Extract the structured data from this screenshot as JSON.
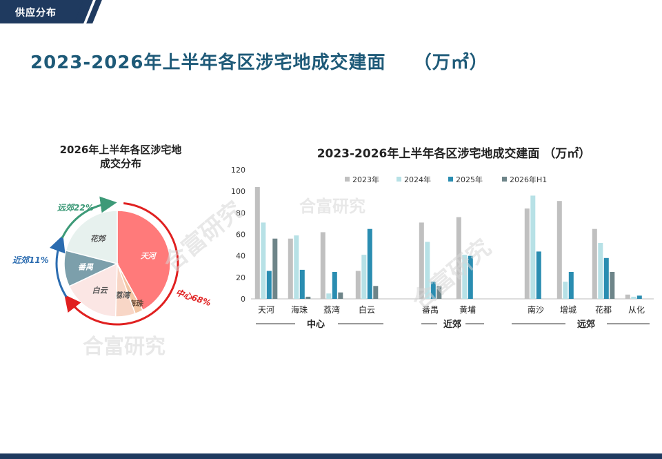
{
  "header": {
    "tag_label": "供应分布",
    "page_title": "2023-2026年上半年各区涉宅地成交建面    （万㎡）"
  },
  "watermarks": [
    "合富研究",
    "合富研究",
    "合富研究",
    "合富研究"
  ],
  "colors": {
    "brand_navy": "#1f3a5f",
    "title_blue": "#1e5a78",
    "s2023": "#c0c0c0",
    "s2024": "#b7e1e6",
    "s2025": "#2a8db1",
    "s2026": "#6e8589",
    "center_arc": "#e02020",
    "near_arc": "#2b6cb0",
    "far_arc": "#3d9a78"
  },
  "chart_data": [
    {
      "type": "pie",
      "title_lines": [
        "2026年上半年各区涉宅地",
        "成交分布"
      ],
      "slices": [
        {
          "name": "天河",
          "value": 42,
          "color": "#ff7a7a"
        },
        {
          "name": "海珠",
          "value": 2.5,
          "color": "#f3c6a4"
        },
        {
          "name": "荔湾",
          "value": 6,
          "color": "#f8d6c6"
        },
        {
          "name": "白云",
          "value": 17.5,
          "color": "#fbe6e4"
        },
        {
          "name": "番禺",
          "value": 11,
          "color": "#7c9fab"
        },
        {
          "name": "花郊",
          "value": 21,
          "color": "#e7f1ee"
        }
      ],
      "group_labels": [
        {
          "label": "中心68%",
          "color": "#e02020"
        },
        {
          "label": "近郊11%",
          "color": "#2b6cb0"
        },
        {
          "label": "远郊22%",
          "color": "#3d9a78"
        }
      ]
    },
    {
      "type": "bar",
      "title": "2023-2026年上半年各区涉宅地成交建面 （万㎡）",
      "ylim": [
        0,
        120
      ],
      "yticks": [
        0,
        20,
        40,
        60,
        80,
        100,
        120
      ],
      "legend_position": "top",
      "categories": [
        "天河",
        "海珠",
        "荔湾",
        "白云",
        "番禺",
        "黄埔",
        "南沙",
        "增城",
        "花都",
        "从化"
      ],
      "groups": [
        {
          "label": "中心",
          "members": [
            "天河",
            "海珠",
            "荔湾",
            "白云"
          ]
        },
        {
          "label": "近郊",
          "members": [
            "番禺",
            "黄埔"
          ]
        },
        {
          "label": "远郊",
          "members": [
            "南沙",
            "增城",
            "花都",
            "从化"
          ]
        }
      ],
      "series": [
        {
          "name": "2023年",
          "color": "#c0c0c0",
          "values": [
            104,
            56,
            62,
            26,
            71,
            76,
            84,
            91,
            65,
            4
          ]
        },
        {
          "name": "2024年",
          "color": "#b7e1e6",
          "values": [
            71,
            59,
            5,
            41,
            53,
            41,
            96,
            16,
            52,
            2
          ]
        },
        {
          "name": "2025年",
          "color": "#2a8db1",
          "values": [
            26,
            27,
            25,
            65,
            16,
            40,
            44,
            25,
            38,
            3
          ]
        },
        {
          "name": "2026年H1",
          "color": "#6e8589",
          "values": [
            56,
            2,
            6,
            12,
            12,
            0,
            0,
            0,
            25,
            0
          ]
        }
      ]
    }
  ]
}
